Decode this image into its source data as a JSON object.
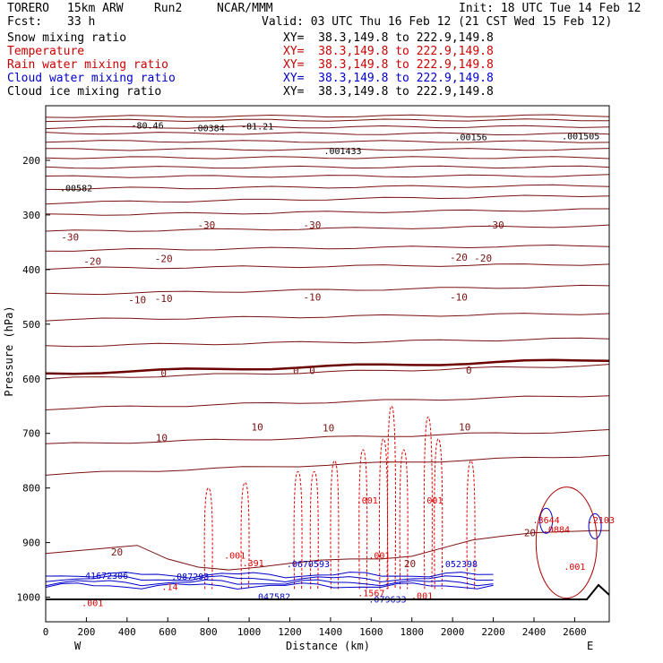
{
  "header": {
    "model": "TORERO",
    "resolution": "15km ARW",
    "run": "Run2",
    "org": "NCAR/MMM",
    "init": "Init: 18 UTC Tue 14 Feb 12",
    "fcst_label": "Fcst:",
    "fcst_value": "33 h",
    "valid": "Valid: 03 UTC Thu 16 Feb 12 (21 CST Wed 15 Feb 12)"
  },
  "fields": [
    {
      "name": "Snow mixing ratio",
      "color": "#000000",
      "xy": "XY=  38.3,149.8 to 222.9,149.8"
    },
    {
      "name": "Temperature",
      "color": "#cc0000",
      "xy": "XY=  38.3,149.8 to 222.9,149.8"
    },
    {
      "name": "Rain water mixing ratio",
      "color": "#cc0000",
      "xy": "XY=  38.3,149.8 to 222.9,149.8"
    },
    {
      "name": "Cloud water mixing ratio",
      "color": "#0000cc",
      "xy": "XY=  38.3,149.8 to 222.9,149.8"
    },
    {
      "name": "Cloud ice mixing ratio",
      "color": "#000000",
      "xy": "XY=  38.3,149.8 to 222.9,149.8"
    }
  ],
  "direction": {
    "west": "W",
    "east": "E"
  },
  "chart_data": {
    "type": "cross-section contour",
    "xlabel": "Distance (km)",
    "ylabel": "Pressure (hPa)",
    "xlim": [
      0,
      2770
    ],
    "ylim": [
      1045,
      100
    ],
    "x_ticks": [
      0,
      200,
      400,
      600,
      800,
      1000,
      1200,
      1400,
      1600,
      1800,
      2000,
      2200,
      2400,
      2600
    ],
    "y_ticks": [
      200,
      300,
      400,
      500,
      600,
      700,
      800,
      900,
      1000
    ],
    "temperature_contours": [
      {
        "level": -30,
        "labels": [
          {
            "x": 120,
            "p": 340,
            "text": "-30"
          },
          {
            "x": 790,
            "p": 318,
            "text": "-30"
          },
          {
            "x": 1310,
            "p": 318,
            "text": "-30"
          },
          {
            "x": 2210,
            "p": 318,
            "text": "-30"
          }
        ]
      },
      {
        "level": -20,
        "labels": [
          {
            "x": 230,
            "p": 385,
            "text": "-20"
          },
          {
            "x": 580,
            "p": 380,
            "text": "-20"
          },
          {
            "x": 2030,
            "p": 377,
            "text": "-20"
          },
          {
            "x": 2150,
            "p": 379,
            "text": "-20"
          }
        ]
      },
      {
        "level": -10,
        "labels": [
          {
            "x": 450,
            "p": 455,
            "text": "-10"
          },
          {
            "x": 580,
            "p": 453,
            "text": "-10"
          },
          {
            "x": 1310,
            "p": 450,
            "text": "-10"
          },
          {
            "x": 2030,
            "p": 450,
            "text": "-10"
          }
        ]
      },
      {
        "level": 0,
        "labels": [
          {
            "x": 580,
            "p": 590,
            "text": "0"
          },
          {
            "x": 1230,
            "p": 585,
            "text": "0"
          },
          {
            "x": 1310,
            "p": 585,
            "text": "0"
          },
          {
            "x": 2080,
            "p": 584,
            "text": "0"
          }
        ]
      },
      {
        "level": 10,
        "labels": [
          {
            "x": 570,
            "p": 708,
            "text": "10"
          },
          {
            "x": 1040,
            "p": 688,
            "text": "10"
          },
          {
            "x": 1390,
            "p": 690,
            "text": "10"
          },
          {
            "x": 2060,
            "p": 688,
            "text": "10"
          }
        ]
      },
      {
        "level": 20,
        "labels": [
          {
            "x": 350,
            "p": 917,
            "text": "20"
          },
          {
            "x": 1790,
            "p": 938,
            "text": "20"
          },
          {
            "x": 2380,
            "p": 882,
            "text": "20"
          }
        ]
      }
    ],
    "maxima": [
      {
        "text": ".00384",
        "x": 800,
        "p": 140
      },
      {
        "text": "-81.21",
        "x": 1040,
        "p": 137
      },
      {
        "text": "-80.46",
        "x": 500,
        "p": 135
      },
      {
        "text": ".001433",
        "x": 1460,
        "p": 182
      },
      {
        "text": ".00156",
        "x": 2090,
        "p": 157
      },
      {
        "text": ".001505",
        "x": 2630,
        "p": 155
      },
      {
        "text": ".00582",
        "x": 150,
        "p": 250
      },
      {
        "text": ".001",
        "x": 1580,
        "p": 822
      },
      {
        "text": ".001",
        "x": 1900,
        "p": 822
      },
      {
        "text": ".001",
        "x": 930,
        "p": 923
      },
      {
        "text": ".001",
        "x": 1640,
        "p": 923
      },
      {
        "text": ".001",
        "x": 2600,
        "p": 943
      },
      {
        "text": ".001",
        "x": 230,
        "p": 1010
      },
      {
        "text": ".001",
        "x": 1850,
        "p": 997
      },
      {
        "text": "41672306",
        "x": 300,
        "p": 960
      },
      {
        "text": ".087293",
        "x": 710,
        "p": 961
      },
      {
        "text": ".391",
        "x": 1020,
        "p": 937
      },
      {
        "text": ".0670593",
        "x": 1290,
        "p": 938
      },
      {
        "text": ".047582",
        "x": 1110,
        "p": 998
      },
      {
        "text": ".1567",
        "x": 1600,
        "p": 992
      },
      {
        "text": ".079633",
        "x": 1680,
        "p": 1003
      },
      {
        "text": ".052398",
        "x": 2030,
        "p": 938
      },
      {
        "text": ".3644",
        "x": 2460,
        "p": 858
      },
      {
        "text": ".0884",
        "x": 2510,
        "p": 875
      },
      {
        "text": ".2103",
        "x": 2730,
        "p": 858
      },
      {
        "text": ".14",
        "x": 610,
        "p": 980
      }
    ]
  }
}
